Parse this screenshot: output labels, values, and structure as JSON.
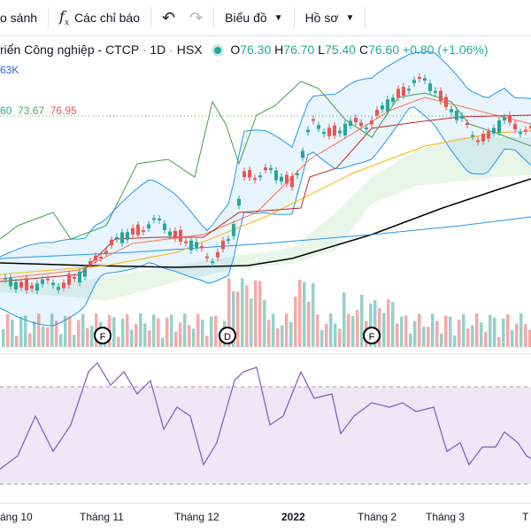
{
  "toolbar": {
    "compare_label": "o sánh",
    "indicators_label": "Các chỉ báo",
    "chart_type_label": "Biểu đồ",
    "profile_label": "Hồ sơ"
  },
  "legend": {
    "title": "riển Công nghiệp - CTCP",
    "interval": "1D",
    "exchange": "HSX",
    "open_label": "O",
    "open": "76.30",
    "high_label": "H",
    "high": "76.70",
    "low_label": "L",
    "low": "75.40",
    "close_label": "C",
    "close": "76.60",
    "change": "+0.80 (+1.06%)"
  },
  "volume_legend": "63K",
  "indicator_values": [
    "60",
    "73.67",
    "76.95"
  ],
  "events": [
    {
      "label": "F",
      "color": "#4caf50"
    },
    {
      "label": "D",
      "color": "#9c27b0"
    },
    {
      "label": "F",
      "color": "#4caf50"
    }
  ],
  "x_axis": [
    "áng 10",
    "Tháng 11",
    "Tháng 12",
    "2022",
    "Tháng 2",
    "Tháng 3",
    "T"
  ],
  "colors": {
    "up": "#26a69a",
    "down": "#ef5350",
    "rsi_band": "#7e57c2",
    "bb": "#2196f3"
  }
}
